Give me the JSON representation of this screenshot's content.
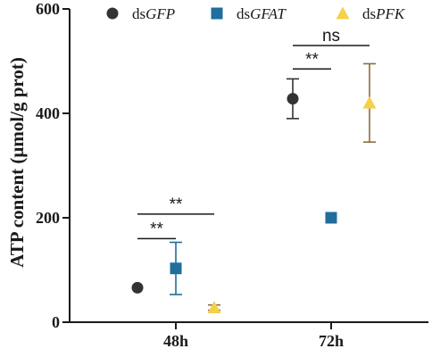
{
  "chart_data": {
    "type": "scatter",
    "title": "",
    "xlabel": "",
    "ylabel": "ATP content (μmol/g prot)",
    "ylim": [
      0,
      600
    ],
    "yticks": [
      0,
      200,
      400,
      600
    ],
    "categories": [
      "48h",
      "72h"
    ],
    "legend_position": "top",
    "grid": false,
    "series": [
      {
        "name_prefix": "ds",
        "name_italic": "GFP",
        "marker": "circle",
        "color": "#333333",
        "values": [
          66,
          428
        ],
        "errors": [
          0,
          38
        ]
      },
      {
        "name_prefix": "ds",
        "name_italic": "GFAT",
        "marker": "square",
        "color": "#1f6e9c",
        "values": [
          103,
          200
        ],
        "errors": [
          50,
          0
        ]
      },
      {
        "name_prefix": "ds",
        "name_italic": "PFK",
        "marker": "triangle",
        "color": "#f5d04a",
        "error_color": "#8a6d3b",
        "values": [
          28,
          420
        ],
        "errors": [
          5,
          75
        ]
      }
    ],
    "annotations": [
      {
        "text": "**",
        "category": 0,
        "from_series": 0,
        "to_series": 1,
        "level": 160
      },
      {
        "text": "**",
        "category": 0,
        "from_series": 0,
        "to_series": 2,
        "level": 207
      },
      {
        "text": "**",
        "category": 1,
        "from_series": 0,
        "to_series": 1,
        "level": 485
      },
      {
        "text": "ns",
        "category": 1,
        "from_series": 0,
        "to_series": 2,
        "level": 530
      }
    ]
  }
}
